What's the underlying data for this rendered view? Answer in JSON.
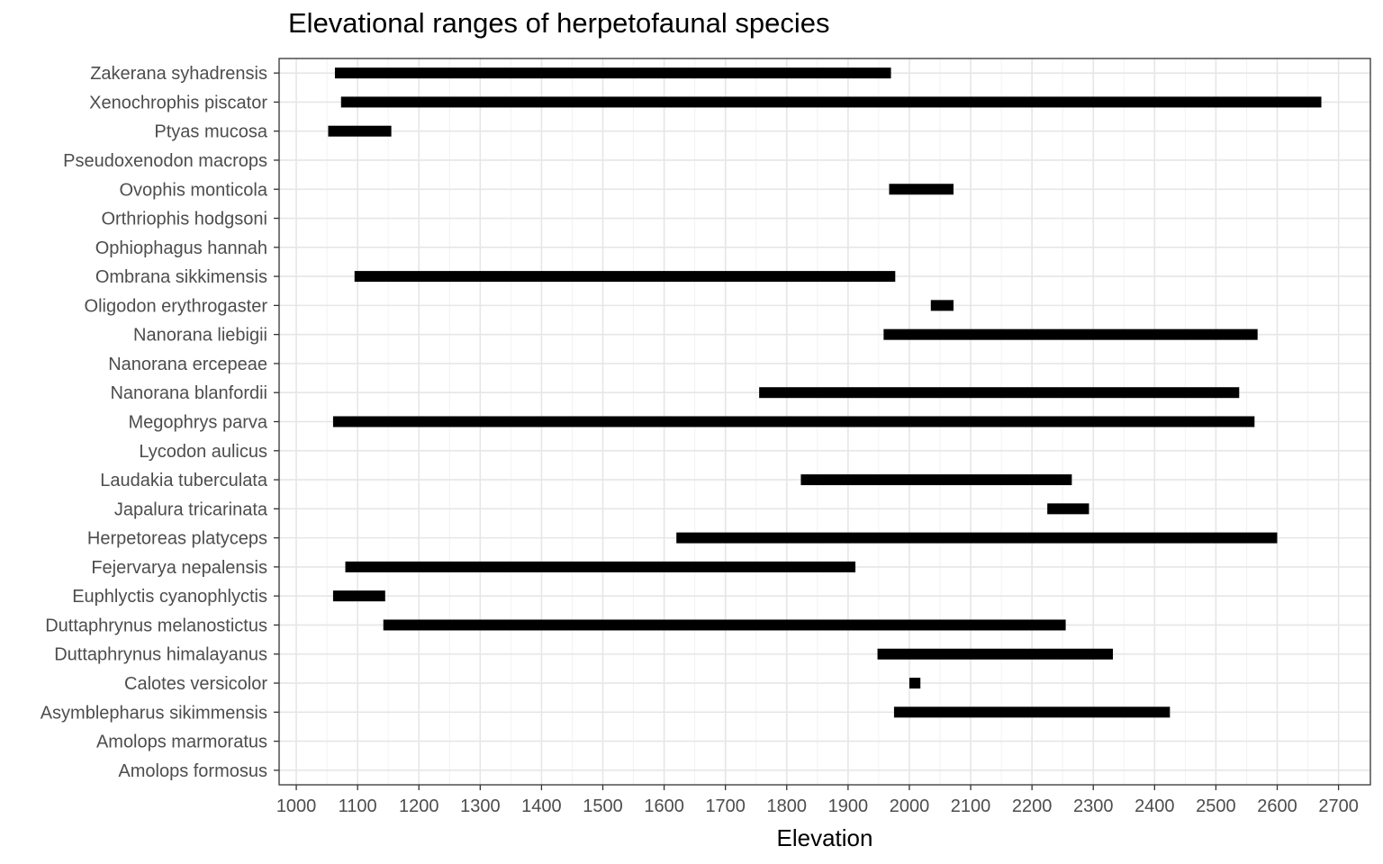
{
  "chart_data": {
    "type": "bar",
    "orientation": "horizontal-range",
    "title": "Elevational ranges of herpetofaunal species",
    "xlabel": "Elevation",
    "ylabel": "",
    "xlim": [
      972,
      2752
    ],
    "x_ticks": [
      "1000",
      "1100",
      "1200",
      "1300",
      "1400",
      "1500",
      "1600",
      "1700",
      "1800",
      "1900",
      "2000",
      "2100",
      "2200",
      "2300",
      "2400",
      "2500",
      "2600",
      "2700"
    ],
    "grid": true,
    "legend": "none",
    "bar_color": "#000000",
    "categories": [
      "Amolops formosus",
      "Amolops marmoratus",
      "Asymblepharus sikimmensis",
      "Calotes versicolor",
      "Duttaphrynus himalayanus",
      "Duttaphrynus melanostictus",
      "Euphlyctis cyanophlyctis",
      "Fejervarya nepalensis ",
      "Herpetoreas platyceps",
      "Japalura tricarinata",
      "Laudakia tuberculata",
      "Lycodon aulicus",
      "Megophrys parva",
      "Nanorana blanfordii",
      "Nanorana ercepeae",
      "Nanorana liebigii ",
      "Oligodon erythrogaster",
      "Ombrana sikkimensis",
      "Ophiophagus hannah",
      "Orthriophis hodgsoni",
      "Ovophis monticola",
      "Pseudoxenodon macrops",
      "Ptyas mucosa",
      "Xenochrophis piscator",
      "Zakerana syhadrensis"
    ],
    "ranges": [
      null,
      null,
      [
        1975,
        2425
      ],
      [
        2000,
        2018
      ],
      [
        1948,
        2332
      ],
      [
        1142,
        2255
      ],
      [
        1060,
        1145
      ],
      [
        1080,
        1912
      ],
      [
        1620,
        2600
      ],
      [
        2225,
        2293
      ],
      [
        1823,
        2265
      ],
      null,
      [
        1060,
        2563
      ],
      [
        1755,
        2538
      ],
      null,
      [
        1958,
        2568
      ],
      [
        2035,
        2072
      ],
      [
        1095,
        1977
      ],
      null,
      null,
      [
        1967,
        2072
      ],
      null,
      [
        1052,
        1155
      ],
      [
        1073,
        2672
      ],
      [
        1063,
        1970
      ]
    ]
  }
}
